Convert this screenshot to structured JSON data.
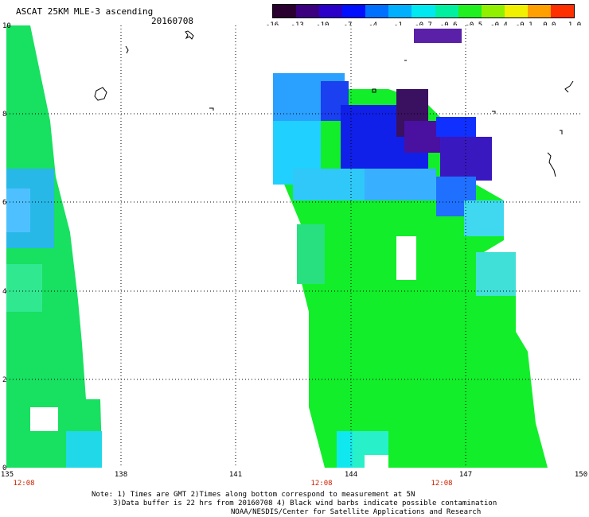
{
  "header": {
    "title": "ASCAT 25KM MLE-3 ascending",
    "date": "20160708"
  },
  "colorbar": {
    "labels": [
      "-16",
      "-13",
      "-10",
      "-7",
      "-4",
      "-1",
      "-0.7",
      "-0.6",
      "-0.5",
      "-0.4",
      "-0.1",
      "0.0",
      "1.0"
    ],
    "colors": [
      "#2a0030",
      "#3a0080",
      "#2a00c8",
      "#0010ff",
      "#0070ff",
      "#00b0ff",
      "#00e8f0",
      "#00f0a0",
      "#20f020",
      "#90f000",
      "#f0f000",
      "#ffa000",
      "#ff3000"
    ]
  },
  "axes": {
    "x_ticks": [
      "135",
      "138",
      "141",
      "144",
      "147",
      "150"
    ],
    "y_ticks": [
      "0",
      "2",
      "4",
      "6",
      "8",
      "10"
    ],
    "time_labels": [
      "12:08",
      "12:08",
      "12:08"
    ]
  },
  "footer": {
    "line1": "Note: 1) Times are GMT 2)Times along bottom correspond to measurement at 5N",
    "line2": "3)Data buffer is 22 hrs from 20160708 4) Black wind barbs indicate possible contamination",
    "line3": "NOAA/NESDIS/Center for Satellite Applications and Research"
  }
}
